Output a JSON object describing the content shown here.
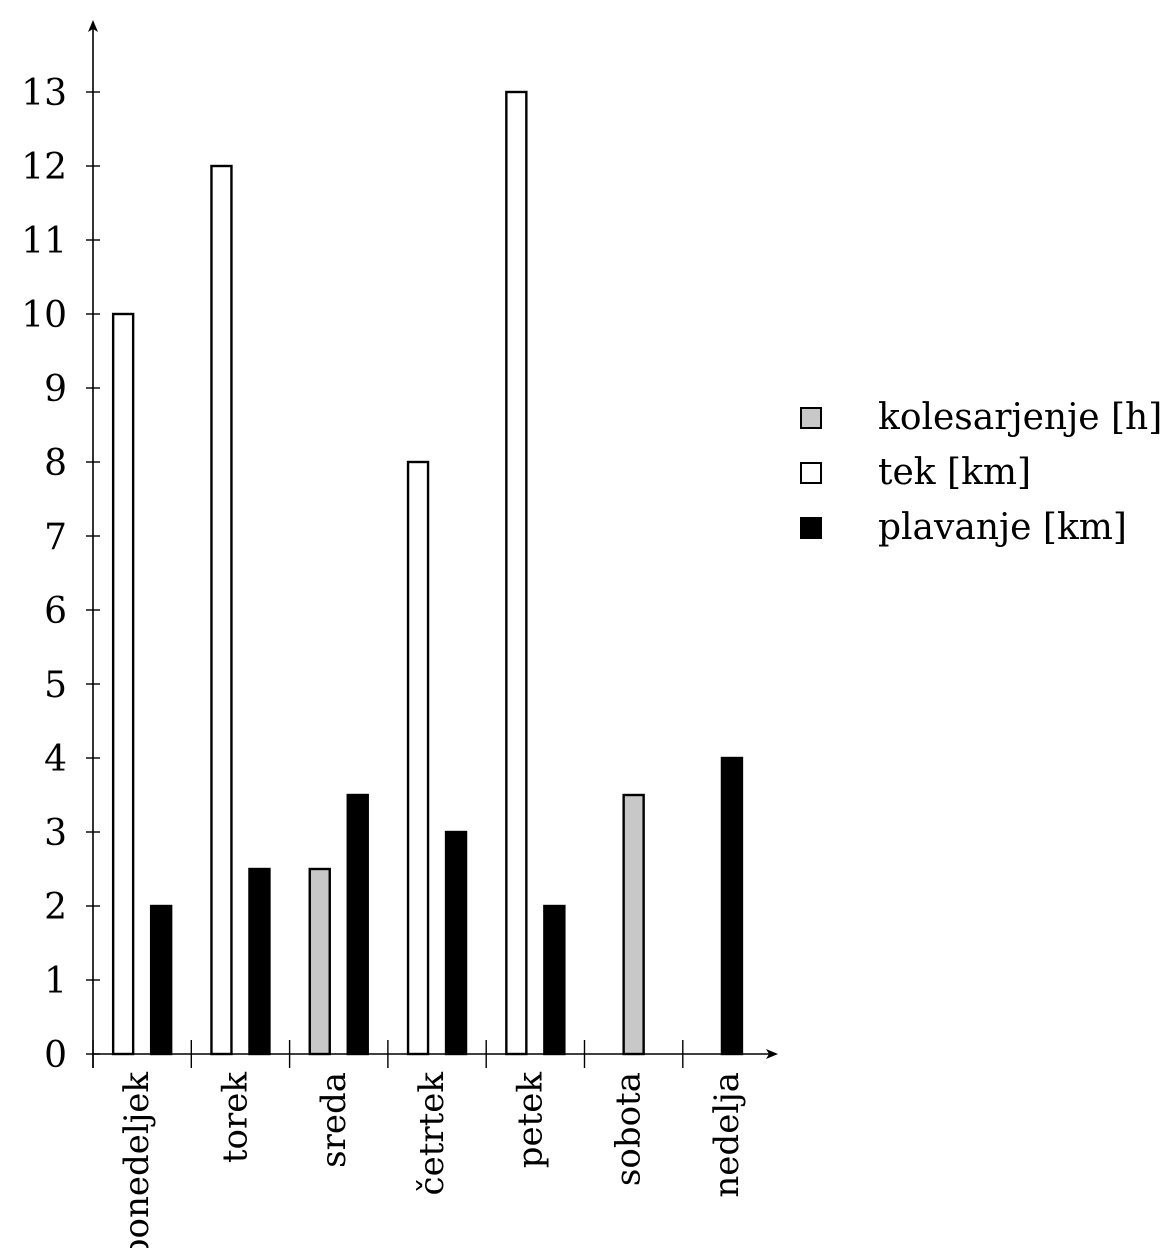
{
  "chart_data": {
    "type": "bar",
    "categories": [
      "ponedeljek",
      "torek",
      "sreda",
      "četrtek",
      "petek",
      "sobota",
      "nedelja"
    ],
    "series": [
      {
        "name": "kolesarjenje [h]",
        "color": "#c8c8c8",
        "values": [
          null,
          null,
          2.5,
          null,
          null,
          3.5,
          null
        ]
      },
      {
        "name": "tek [km]",
        "color": "#ffffff",
        "values": [
          10,
          12,
          null,
          8,
          13,
          null,
          null
        ]
      },
      {
        "name": "plavanje [km]",
        "color": "#000000",
        "values": [
          2,
          2.5,
          3.5,
          3,
          2,
          null,
          4
        ]
      }
    ],
    "yticks": [
      0,
      1,
      2,
      3,
      4,
      5,
      6,
      7,
      8,
      9,
      10,
      11,
      12,
      13
    ],
    "ylim": [
      0,
      14
    ],
    "legend": "right",
    "grid": false
  }
}
